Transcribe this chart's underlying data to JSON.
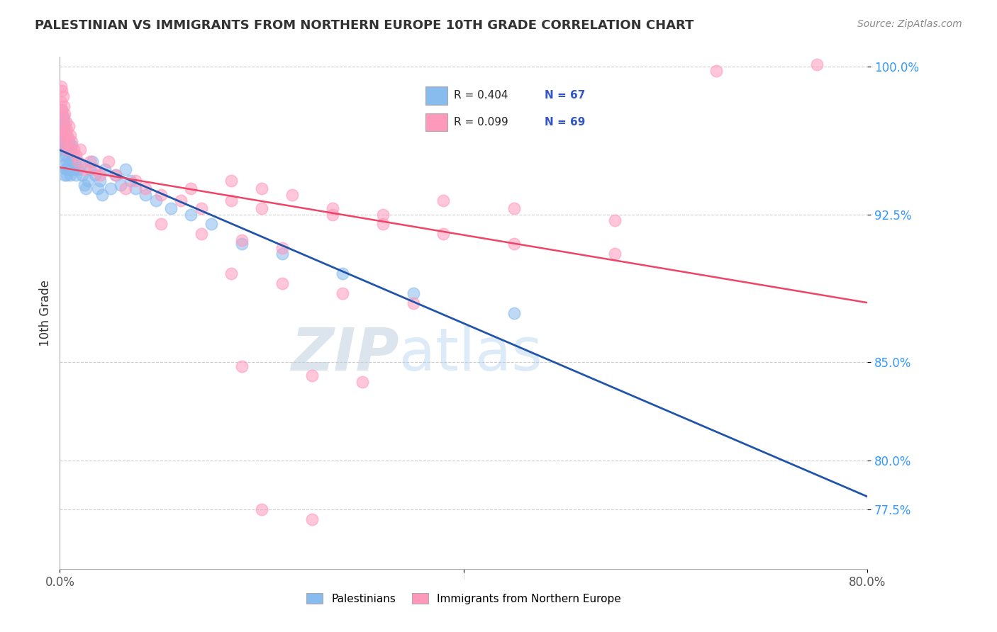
{
  "title": "PALESTINIAN VS IMMIGRANTS FROM NORTHERN EUROPE 10TH GRADE CORRELATION CHART",
  "source": "Source: ZipAtlas.com",
  "ylabel": "10th Grade",
  "xlim": [
    0.0,
    0.8
  ],
  "ylim": [
    0.745,
    1.005
  ],
  "ytick_positions": [
    0.775,
    0.8,
    0.85,
    0.925,
    1.0
  ],
  "ytick_labels": [
    "77.5%",
    "80.0%",
    "85.0%",
    "92.5%",
    "100.0%"
  ],
  "grid_lines": [
    0.775,
    0.8,
    0.85,
    0.925,
    1.0
  ],
  "xtick_positions": [
    0.0,
    0.8
  ],
  "xtick_labels": [
    "0.0%",
    "80.0%"
  ],
  "legend_r1": "R = 0.404",
  "legend_n1": "N = 67",
  "legend_r2": "R = 0.099",
  "legend_n2": "N = 69",
  "legend_label1": "Palestinians",
  "legend_label2": "Immigrants from Northern Europe",
  "color_blue": "#88BBEE",
  "color_pink": "#FF99BB",
  "color_blue_line": "#2255AA",
  "color_pink_line": "#EE4466",
  "watermark_zip": "ZIP",
  "watermark_atlas": "atlas",
  "blue_scatter_x": [
    0.001,
    0.001,
    0.001,
    0.002,
    0.002,
    0.002,
    0.002,
    0.003,
    0.003,
    0.003,
    0.003,
    0.003,
    0.004,
    0.004,
    0.004,
    0.004,
    0.005,
    0.005,
    0.005,
    0.005,
    0.006,
    0.006,
    0.006,
    0.007,
    0.007,
    0.007,
    0.008,
    0.008,
    0.009,
    0.009,
    0.01,
    0.01,
    0.011,
    0.012,
    0.013,
    0.014,
    0.015,
    0.016,
    0.018,
    0.02,
    0.022,
    0.024,
    0.026,
    0.028,
    0.03,
    0.032,
    0.035,
    0.038,
    0.04,
    0.042,
    0.045,
    0.05,
    0.055,
    0.06,
    0.065,
    0.07,
    0.075,
    0.085,
    0.095,
    0.11,
    0.13,
    0.15,
    0.18,
    0.22,
    0.28,
    0.35,
    0.45
  ],
  "blue_scatter_y": [
    0.97,
    0.975,
    0.965,
    0.972,
    0.968,
    0.978,
    0.96,
    0.975,
    0.97,
    0.965,
    0.958,
    0.962,
    0.973,
    0.968,
    0.963,
    0.955,
    0.97,
    0.96,
    0.95,
    0.945,
    0.965,
    0.955,
    0.948,
    0.96,
    0.952,
    0.945,
    0.958,
    0.948,
    0.962,
    0.95,
    0.958,
    0.945,
    0.952,
    0.96,
    0.955,
    0.948,
    0.952,
    0.945,
    0.948,
    0.95,
    0.945,
    0.94,
    0.938,
    0.942,
    0.948,
    0.952,
    0.945,
    0.938,
    0.942,
    0.935,
    0.948,
    0.938,
    0.945,
    0.94,
    0.948,
    0.942,
    0.938,
    0.935,
    0.932,
    0.928,
    0.925,
    0.92,
    0.91,
    0.905,
    0.895,
    0.885,
    0.875
  ],
  "pink_scatter_x": [
    0.001,
    0.001,
    0.002,
    0.002,
    0.002,
    0.003,
    0.003,
    0.003,
    0.004,
    0.004,
    0.004,
    0.005,
    0.005,
    0.006,
    0.006,
    0.007,
    0.007,
    0.008,
    0.009,
    0.01,
    0.011,
    0.012,
    0.014,
    0.016,
    0.018,
    0.02,
    0.025,
    0.03,
    0.035,
    0.04,
    0.048,
    0.055,
    0.065,
    0.075,
    0.085,
    0.1,
    0.12,
    0.14,
    0.17,
    0.2,
    0.13,
    0.17,
    0.2,
    0.23,
    0.27,
    0.32,
    0.38,
    0.45,
    0.55,
    0.65,
    0.1,
    0.14,
    0.18,
    0.22,
    0.27,
    0.32,
    0.38,
    0.45,
    0.55,
    0.75,
    0.17,
    0.22,
    0.28,
    0.35,
    0.18,
    0.25,
    0.3,
    0.2,
    0.25
  ],
  "pink_scatter_y": [
    0.99,
    0.982,
    0.988,
    0.978,
    0.968,
    0.985,
    0.975,
    0.965,
    0.98,
    0.97,
    0.96,
    0.976,
    0.966,
    0.972,
    0.962,
    0.968,
    0.958,
    0.964,
    0.97,
    0.965,
    0.958,
    0.962,
    0.958,
    0.955,
    0.952,
    0.958,
    0.948,
    0.952,
    0.948,
    0.945,
    0.952,
    0.945,
    0.938,
    0.942,
    0.938,
    0.935,
    0.932,
    0.928,
    0.942,
    0.938,
    0.938,
    0.932,
    0.928,
    0.935,
    0.928,
    0.925,
    0.932,
    0.928,
    0.922,
    0.998,
    0.92,
    0.915,
    0.912,
    0.908,
    0.925,
    0.92,
    0.915,
    0.91,
    0.905,
    1.001,
    0.895,
    0.89,
    0.885,
    0.88,
    0.848,
    0.843,
    0.84,
    0.775,
    0.77
  ]
}
